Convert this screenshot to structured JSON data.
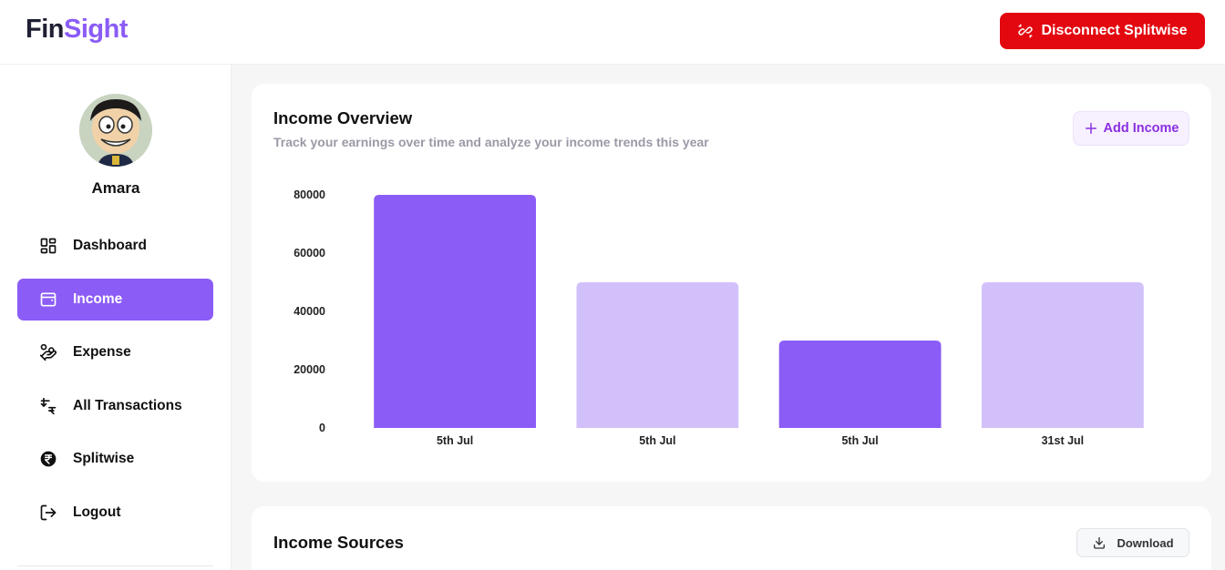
{
  "header": {
    "logo_part1": "Fin",
    "logo_part2": "Sight",
    "disconnect_label": "Disconnect Splitwise",
    "disconnect_icon": "unlink-icon"
  },
  "sidebar": {
    "user_name": "Amara",
    "items": [
      {
        "label": "Dashboard",
        "icon": "dashboard-grid-icon",
        "active": false
      },
      {
        "label": "Income",
        "icon": "wallet-icon",
        "active": true
      },
      {
        "label": "Expense",
        "icon": "hand-coins-icon",
        "active": false
      },
      {
        "label": "All Transactions",
        "icon": "transactions-icon",
        "active": false
      },
      {
        "label": "Splitwise",
        "icon": "rupee-circle-icon",
        "active": false
      },
      {
        "label": "Logout",
        "icon": "logout-icon",
        "active": false
      }
    ]
  },
  "overview": {
    "title": "Income Overview",
    "subtitle": "Track your earnings over time and analyze your income trends this year",
    "add_income_label": "Add Income"
  },
  "sources": {
    "title": "Income Sources",
    "download_label": "Download"
  },
  "colors": {
    "accent": "#8b5cf6",
    "accent_light": "#d2c0fb",
    "danger": "#e3070f"
  },
  "chart_data": {
    "type": "bar",
    "categories": [
      "5th Jul",
      "5th Jul",
      "5th Jul",
      "31st Jul"
    ],
    "values": [
      80000,
      50000,
      30000,
      50000
    ],
    "bar_colors": [
      "#8b5cf6",
      "#d2c0fb",
      "#8b5cf6",
      "#d2c0fb"
    ],
    "yticks": [
      "0",
      "20000",
      "40000",
      "60000",
      "80000"
    ],
    "ylim": [
      0,
      80000
    ],
    "grid": false,
    "legend": "none"
  }
}
